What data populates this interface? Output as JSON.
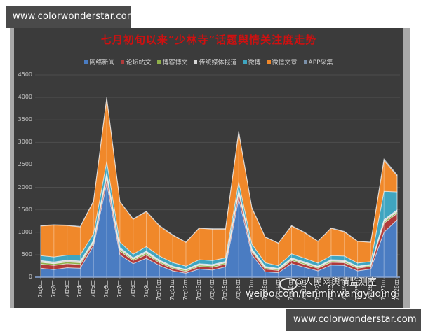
{
  "watermark_top": "www.colorwonderstar.com",
  "watermark_bottom": "www.colorwonderstar.com",
  "source_watermark": {
    "line1": "@人民网舆情监测室",
    "line2": "weibo.com/renminwangyuqing"
  },
  "chart_data": {
    "type": "area",
    "stacked": true,
    "title": "七月初旬以来“少林寺”话题舆情关注度走势",
    "xlabel": "",
    "ylabel": "",
    "ylim": [
      0,
      4500
    ],
    "yticks": [
      0,
      500,
      1000,
      1500,
      2000,
      2500,
      3000,
      3500,
      4000,
      4500
    ],
    "grid": true,
    "legend_position": "top",
    "categories": [
      "7月1日",
      "7月2日",
      "7月3日",
      "7月4日",
      "7月5日",
      "7月6日",
      "7月7日",
      "7月8日",
      "7月9日",
      "7月10日",
      "7月11日",
      "7月12日",
      "7月13日",
      "7月14日",
      "7月15日",
      "7月16日",
      "7月17日",
      "7月18日",
      "7月19日",
      "7月20日",
      "7月21日",
      "7月22日",
      "7月23日",
      "7月24日",
      "7月25日",
      "7月26日",
      "7月27日",
      "7月28日"
    ],
    "series": [
      {
        "name": "网络新闻",
        "color": "#4a7cc2",
        "values": [
          200,
          170,
          210,
          200,
          700,
          2100,
          500,
          300,
          420,
          260,
          140,
          90,
          180,
          160,
          230,
          1750,
          500,
          120,
          100,
          300,
          220,
          140,
          270,
          260,
          140,
          180,
          1000,
          1280
        ]
      },
      {
        "name": "论坛帖文",
        "color": "#b03a3a",
        "values": [
          90,
          90,
          90,
          80,
          60,
          120,
          80,
          70,
          80,
          60,
          50,
          40,
          60,
          60,
          60,
          120,
          70,
          60,
          50,
          70,
          60,
          60,
          60,
          60,
          60,
          60,
          200,
          140
        ]
      },
      {
        "name": "博客博文",
        "color": "#8fb04a",
        "values": [
          40,
          40,
          40,
          40,
          30,
          50,
          40,
          30,
          40,
          30,
          30,
          25,
          30,
          30,
          30,
          40,
          30,
          30,
          25,
          30,
          30,
          25,
          30,
          30,
          25,
          25,
          40,
          40
        ]
      },
      {
        "name": "传统媒体报道",
        "color": "#d8d8d8",
        "values": [
          40,
          40,
          40,
          40,
          30,
          60,
          40,
          30,
          40,
          30,
          25,
          20,
          30,
          30,
          30,
          50,
          30,
          30,
          20,
          30,
          30,
          20,
          30,
          30,
          20,
          20,
          40,
          40
        ]
      },
      {
        "name": "微博",
        "color": "#3fa5c0",
        "values": [
          110,
          110,
          110,
          130,
          150,
          250,
          120,
          80,
          100,
          90,
          80,
          70,
          90,
          90,
          80,
          160,
          110,
          80,
          60,
          90,
          80,
          70,
          90,
          90,
          70,
          60,
          630,
          400
        ]
      },
      {
        "name": "微信文章",
        "color": "#f0882a",
        "values": [
          660,
          710,
          660,
          630,
          720,
          1400,
          900,
          780,
          780,
          670,
          610,
          530,
          700,
          700,
          640,
          1110,
          800,
          570,
          500,
          620,
          570,
          480,
          610,
          540,
          480,
          430,
          690,
          360
        ]
      },
      {
        "name": "APP采集",
        "color": "#7a8fa8",
        "values": [
          10,
          10,
          10,
          10,
          10,
          20,
          10,
          10,
          10,
          10,
          10,
          5,
          10,
          10,
          10,
          20,
          10,
          10,
          5,
          10,
          10,
          5,
          10,
          10,
          5,
          5,
          30,
          20
        ]
      }
    ],
    "totals_approx": [
      1150,
      1170,
      1160,
      1130,
      1700,
      4000,
      1700,
      1300,
      1470,
      1150,
      950,
      780,
      1100,
      1080,
      1080,
      3250,
      1550,
      900,
      760,
      1150,
      1000,
      800,
      1100,
      1020,
      800,
      780,
      2630,
      2280
    ]
  }
}
